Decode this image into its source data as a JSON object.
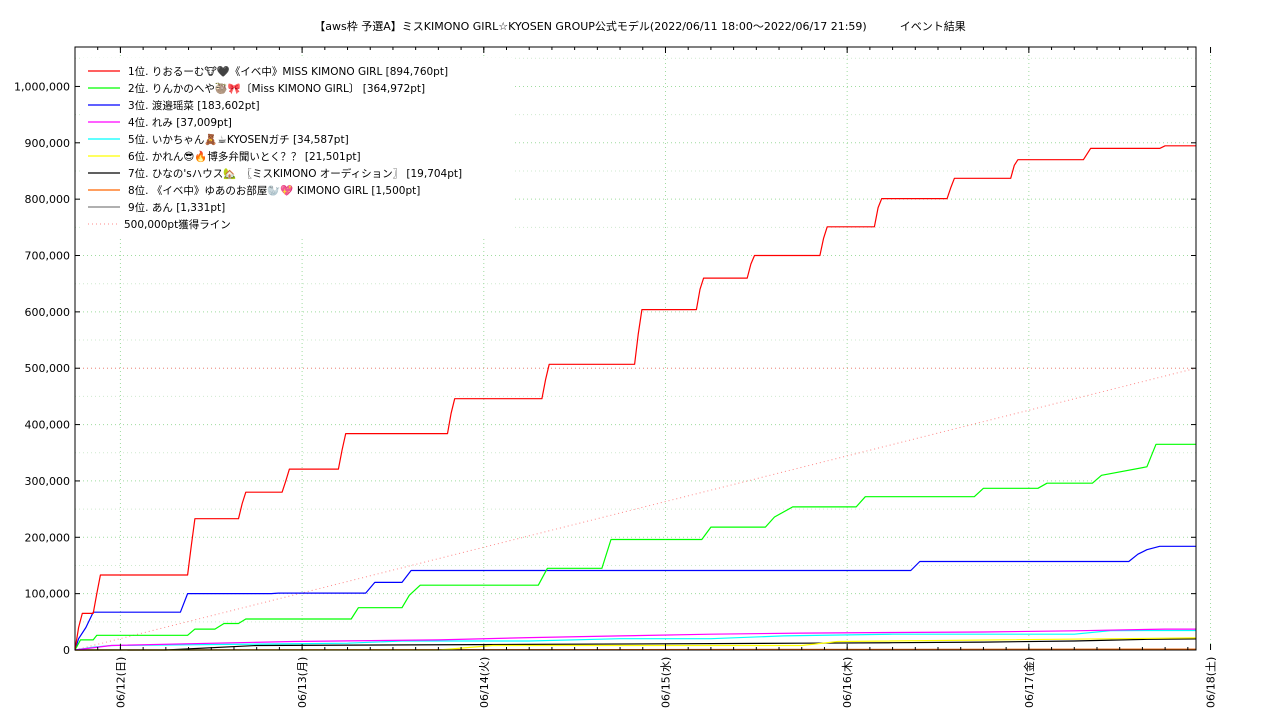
{
  "chart_data": {
    "type": "line",
    "title": "【aws枠 予選A】ミスKIMONO GIRL☆KYOSEN GROUP公式モデル(2022/06/11 18:00～2022/06/17 21:59)　　　イベント結果",
    "xlabel": "",
    "ylabel": "",
    "ylim": [
      0,
      1070000
    ],
    "xlim": [
      0,
      6.17
    ],
    "grid": true,
    "legend_position": "top-left",
    "y_ticks": [
      0,
      100000,
      200000,
      300000,
      400000,
      500000,
      600000,
      700000,
      800000,
      900000,
      1000000
    ],
    "y_tick_labels": [
      "0",
      "100,000",
      "200,000",
      "300,000",
      "400,000",
      "500,000",
      "600,000",
      "700,000",
      "800,000",
      "900,000",
      "1,000,000"
    ],
    "x_ticks": [
      0.25,
      1.25,
      2.25,
      3.25,
      4.25,
      5.25,
      6.25
    ],
    "x_tick_labels": [
      "06/12(日)",
      "06/13(月)",
      "06/14(火)",
      "06/15(水)",
      "06/16(木)",
      "06/17(金)",
      "06/18(土)"
    ],
    "series": [
      {
        "name": "1位. りおるーむ🐮🖤《イベ中》MISS KIMONO GIRL [894,760pt]",
        "color": "#ff0000",
        "x": [
          0,
          0.02,
          0.04,
          0.1,
          0.12,
          0.14,
          0.62,
          0.64,
          0.66,
          0.9,
          0.92,
          0.94,
          1.14,
          1.16,
          1.18,
          1.45,
          1.47,
          1.49,
          2.05,
          2.07,
          2.09,
          2.57,
          2.59,
          2.61,
          3.08,
          3.1,
          3.12,
          3.42,
          3.44,
          3.46,
          3.7,
          3.72,
          3.74,
          4.1,
          4.12,
          4.14,
          4.4,
          4.42,
          4.44,
          4.8,
          4.82,
          4.84,
          5.15,
          5.17,
          5.19,
          5.55,
          5.57,
          5.59,
          5.97,
          6.0,
          6.17
        ],
        "y": [
          0,
          40000,
          65000,
          65000,
          100000,
          133000,
          133000,
          185000,
          233000,
          233000,
          260000,
          280000,
          280000,
          300000,
          321000,
          321000,
          355000,
          384000,
          384000,
          420000,
          446000,
          446000,
          480000,
          507000,
          507000,
          560000,
          604000,
          604000,
          640000,
          660000,
          660000,
          685000,
          700000,
          700000,
          730000,
          751000,
          751000,
          785000,
          801000,
          801000,
          820000,
          837000,
          837000,
          860000,
          870000,
          870000,
          880000,
          890000,
          890000,
          894760,
          894760
        ]
      },
      {
        "name": "2位. りんかのへや🦥🎀〔Miss KIMONO GIRL〕 [364,972pt]",
        "color": "#00ff00",
        "x": [
          0,
          0.03,
          0.1,
          0.12,
          0.62,
          0.66,
          0.77,
          0.82,
          0.9,
          0.94,
          1.52,
          1.56,
          1.8,
          1.84,
          1.9,
          2.55,
          2.6,
          2.9,
          2.95,
          3.45,
          3.5,
          3.8,
          3.85,
          3.95,
          4.3,
          4.35,
          4.95,
          5.0,
          5.3,
          5.35,
          5.6,
          5.65,
          5.9,
          5.95,
          6.17
        ],
        "y": [
          0,
          18000,
          18000,
          26000,
          26000,
          37000,
          37000,
          47000,
          47000,
          55000,
          55000,
          75000,
          75000,
          97000,
          115000,
          115000,
          145000,
          145000,
          196000,
          196000,
          218000,
          218000,
          236000,
          254000,
          254000,
          272000,
          272000,
          287000,
          287000,
          296000,
          296000,
          310000,
          325000,
          365000,
          365000
        ]
      },
      {
        "name": "3位. 渡邉瑶菜 [183,602pt]",
        "color": "#0000ff",
        "x": [
          0,
          0.02,
          0.06,
          0.1,
          0.58,
          0.62,
          1.08,
          1.12,
          1.6,
          1.65,
          1.8,
          1.85,
          4.6,
          4.65,
          5.8,
          5.85,
          5.9,
          5.97,
          6.17
        ],
        "y": [
          0,
          20000,
          40000,
          67000,
          67000,
          100000,
          100000,
          101000,
          101000,
          120000,
          120000,
          141000,
          141000,
          157000,
          157000,
          170000,
          178000,
          184000,
          184000
        ]
      },
      {
        "name": "4位. れみ [37,009pt]",
        "color": "#ff00ff",
        "x": [
          0,
          0.2,
          1.2,
          2.0,
          2.5,
          3.0,
          3.5,
          4.0,
          4.5,
          5.0,
          5.5,
          6.0,
          6.17
        ],
        "y": [
          0,
          8000,
          15000,
          18000,
          22000,
          25000,
          28000,
          30000,
          31000,
          32000,
          34000,
          37000,
          37000
        ]
      },
      {
        "name": "5位. いかちゃん🧸☕KYOSENガチ [34,587pt]",
        "color": "#00ffff",
        "x": [
          0,
          0.1,
          0.2,
          1.5,
          1.8,
          2.5,
          3.0,
          3.5,
          3.9,
          4.5,
          5.5,
          5.7,
          6.17
        ],
        "y": [
          0,
          5000,
          8000,
          12000,
          16000,
          16000,
          20000,
          20000,
          25000,
          28000,
          28000,
          34500,
          34587
        ]
      },
      {
        "name": "6位. かれん😎🔥博多弁聞いとく？？ [21,501pt]",
        "color": "#ffff00",
        "x": [
          0,
          2.0,
          2.3,
          4.0,
          4.2,
          6.17
        ],
        "y": [
          0,
          0,
          8000,
          8000,
          15000,
          21501
        ]
      },
      {
        "name": "7位. ひなの'sハウス🏡　〖ミスKIMONO オーディション〗 [19,704pt]",
        "color": "#000000",
        "x": [
          0,
          0.5,
          1.0,
          2.5,
          4.0,
          4.5,
          5.0,
          5.5,
          5.9,
          6.17
        ],
        "y": [
          0,
          0,
          8000,
          10000,
          12000,
          13000,
          14000,
          16000,
          19000,
          19704
        ]
      },
      {
        "name": "8位. 《イベ中》ゆあのお部屋🦭💖 KIMONO GIRL [1,500pt]",
        "color": "#ff6600",
        "x": [
          0,
          6.17
        ],
        "y": [
          0,
          1500
        ]
      },
      {
        "name": "9位. あん [1,331pt]",
        "color": "#808080",
        "x": [
          0,
          6.17
        ],
        "y": [
          0,
          1331
        ]
      },
      {
        "name": "500,000pt獲得ライン",
        "color": "#ff8888",
        "dashed": true,
        "x": [
          0,
          6.17
        ],
        "y": [
          0,
          500000
        ]
      }
    ]
  }
}
